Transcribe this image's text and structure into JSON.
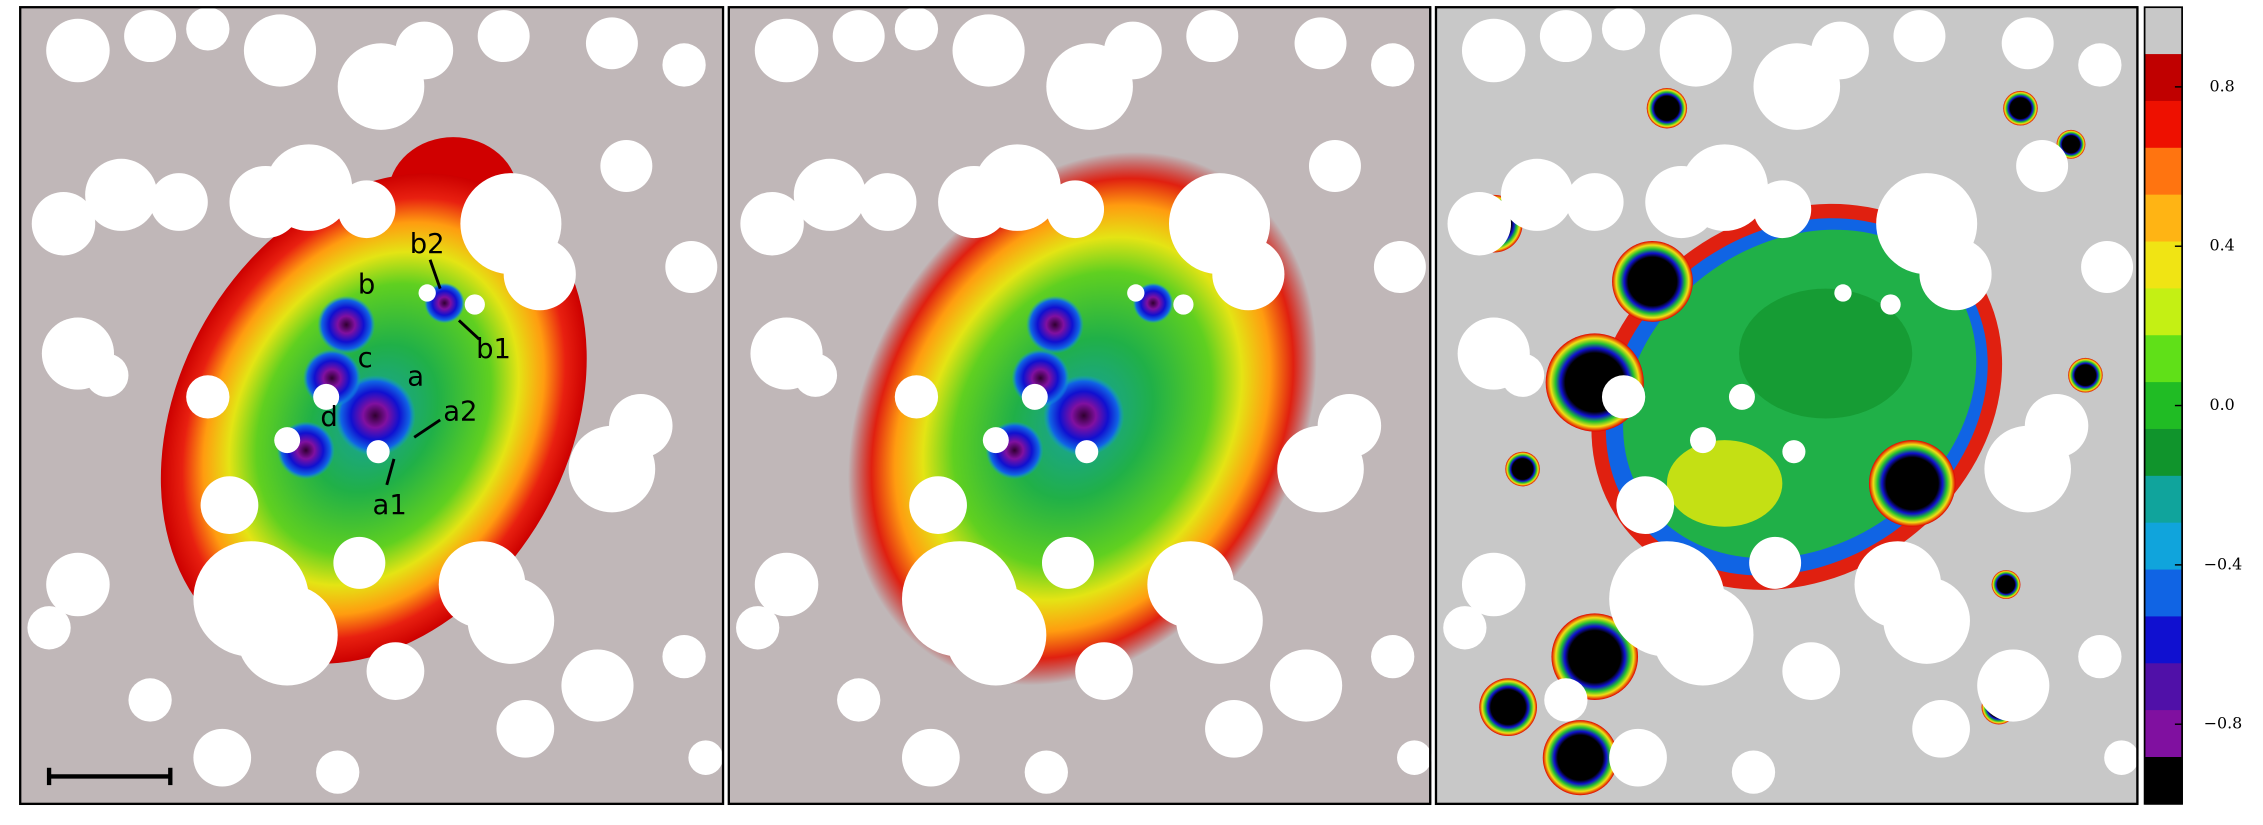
{
  "chart_data": {
    "type": "image",
    "annotations": [
      "b2",
      "b",
      "b1",
      "c",
      "a",
      "a2",
      "d",
      "a1"
    ],
    "colorbar": {
      "ylim": [
        -1,
        1
      ],
      "yticks": [
        0.8,
        0.4,
        {
          "value": 0,
          "label": "0.0"
        },
        {
          "value": -0.4,
          "label": "−0.4"
        },
        {
          "value": -0.8,
          "label": "−0.8"
        }
      ],
      "colors": [
        "#c8c8c8",
        "#c00000",
        "#ee1000",
        "#ff7410",
        "#ffb414",
        "#f0e414",
        "#c4f014",
        "#60e018",
        "#20bc24",
        "#10942c",
        "#10a49c",
        "#10a4dc",
        "#1064e4",
        "#1010d0",
        "#5010a8",
        "#8010a0",
        "#000000"
      ]
    }
  }
}
